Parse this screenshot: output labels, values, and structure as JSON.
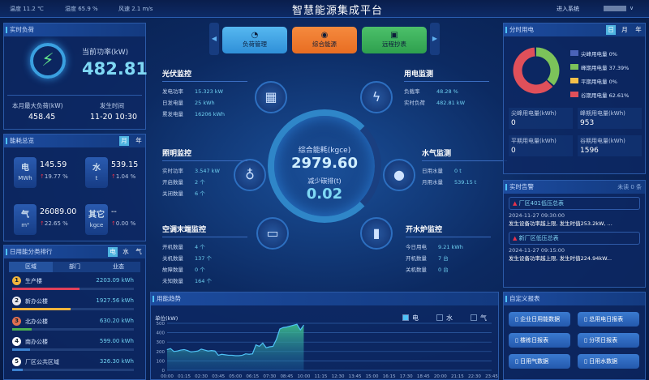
{
  "header": {
    "temperature": "温度 11.2 ℃",
    "humidity": "湿度 65.9 %",
    "wind": "风速 2.1 m/s",
    "title": "智慧能源集成平台",
    "enter": "进入系统",
    "user_caret": "∨"
  },
  "realtime_load": {
    "title": "实时负荷",
    "power_label": "当前功率(kW)",
    "power": "482.81",
    "max_label": "本月最大负荷(kW)",
    "max": "458.45",
    "time_label": "发生时间",
    "time": "11-20 10:30"
  },
  "overview": {
    "title": "能耗总览",
    "toggles": [
      "月",
      "年"
    ],
    "items": [
      {
        "name": "电",
        "unit": "MWh",
        "value": "145.59",
        "change": "19.77 %"
      },
      {
        "name": "水",
        "unit": "t",
        "value": "539.15",
        "change": "1.04 %"
      },
      {
        "name": "气",
        "unit": "m³",
        "value": "26089.00",
        "change": "22.65 %"
      },
      {
        "name": "其它",
        "unit": "kgce",
        "value": "--",
        "change": "0.00 %"
      }
    ]
  },
  "ranking": {
    "title": "日用能分类排行",
    "toggles": [
      "电",
      "水",
      "气"
    ],
    "tabs": [
      "区域",
      "部门",
      "业态"
    ],
    "items": [
      {
        "rank": "1",
        "name": "生产楼",
        "value": "2203.09 kWh",
        "pct": 38,
        "color": "#e0405a"
      },
      {
        "rank": "2",
        "name": "新办公楼",
        "value": "1927.56 kWh",
        "pct": 33,
        "color": "#f0b43c"
      },
      {
        "rank": "3",
        "name": "北办公楼",
        "value": "630.20 kWh",
        "pct": 11,
        "color": "#4caf50"
      },
      {
        "rank": "4",
        "name": "南办公楼",
        "value": "599.00 kWh",
        "pct": 10,
        "color": "#3c82d0"
      },
      {
        "rank": "5",
        "name": "厂区公共区域",
        "value": "326.30 kWh",
        "pct": 6,
        "color": "#3c82d0"
      }
    ]
  },
  "nav": {
    "buttons": [
      "负荷管理",
      "综合能源",
      "远程抄表"
    ]
  },
  "center": {
    "energy_label": "综合能耗(kgce)",
    "energy": "2979.60",
    "carbon_label": "减少碳排(t)",
    "carbon": "0.02"
  },
  "pv": {
    "title": "光伏监控",
    "rows": [
      [
        "发电功率",
        "15.323 kW"
      ],
      [
        "日发电量",
        "25 kWh"
      ],
      [
        "累发电量",
        "16206 kWh"
      ]
    ]
  },
  "power": {
    "title": "用电监测",
    "rows": [
      [
        "负载率",
        "48.28 %"
      ],
      [
        "实时负荷",
        "482.81 kW"
      ]
    ]
  },
  "lighting": {
    "title": "照明监控",
    "rows": [
      [
        "实时功率",
        "3.547 kW"
      ],
      [
        "开启数量",
        "2 个"
      ],
      [
        "关闭数量",
        "6 个"
      ]
    ]
  },
  "water": {
    "title": "水气监测",
    "rows": [
      [
        "日用水量",
        "0 t"
      ],
      [
        "月用水量",
        "539.15 t"
      ]
    ]
  },
  "ac": {
    "title": "空调末端监控",
    "rows": [
      [
        "开机数量",
        "4 个"
      ],
      [
        "关机数量",
        "137 个"
      ],
      [
        "故障数量",
        "0 个"
      ],
      [
        "未知数量",
        "164 个"
      ]
    ]
  },
  "boiler": {
    "title": "开水炉监控",
    "rows": [
      [
        "今日用电",
        "9.21 kWh"
      ],
      [
        "开机数量",
        "7 台"
      ],
      [
        "关机数量",
        "0 台"
      ]
    ]
  },
  "tou": {
    "title": "分时用电",
    "toggles": [
      "日",
      "月",
      "年"
    ],
    "legend": [
      {
        "name": "尖峰用电量",
        "pct": "0%",
        "value": 0,
        "color": "#4a63b8"
      },
      {
        "name": "峰期用电量",
        "pct": "37.39%",
        "value": 37.39,
        "color": "#7cc35a"
      },
      {
        "name": "平期用电量",
        "pct": "0%",
        "value": 0,
        "color": "#f4c04a"
      },
      {
        "name": "谷期用电量",
        "pct": "62.61%",
        "value": 62.61,
        "color": "#e0505a"
      }
    ],
    "stats": [
      [
        "尖峰用电量(kWh)",
        "0"
      ],
      [
        "峰期用电量(kWh)",
        "953"
      ],
      [
        "平期用电量(kWh)",
        "0"
      ],
      [
        "谷期用电量(kWh)",
        "1596"
      ]
    ]
  },
  "alarms": {
    "title": "实时告警",
    "unread": "未读 0 条",
    "items": [
      {
        "name": "厂区401低压总表",
        "time": "2024-11-27 09:30:00",
        "msg": "发生设备功率越上限, 发生时值253.2kW, ..."
      },
      {
        "name": "新厂区低压总表",
        "time": "2024-11-27 09:15:00",
        "msg": "发生设备功率越上限, 发生时值224.94kW..."
      }
    ]
  },
  "reports": {
    "title": "自定义报表",
    "items": [
      "企业日用能数据",
      "总用电日报表",
      "楼栋日报表",
      "分项日报表",
      "日用气数据",
      "日用水数据"
    ]
  },
  "chart_data": {
    "type": "area",
    "title": "用能趋势",
    "ylabel": "单位(kW)",
    "ylim": [
      0,
      500
    ],
    "yticks": [
      0,
      100,
      200,
      300,
      400,
      500
    ],
    "legend": [
      {
        "name": "电",
        "active": true
      },
      {
        "name": "水",
        "active": false
      },
      {
        "name": "气",
        "active": false
      }
    ],
    "xticks": [
      "00:00",
      "01:15",
      "02:30",
      "03:45",
      "05:00",
      "06:15",
      "07:30",
      "08:45",
      "10:00",
      "11:15",
      "12:30",
      "13:45",
      "15:00",
      "16:15",
      "17:30",
      "18:45",
      "20:00",
      "21:15",
      "22:30",
      "23:45"
    ],
    "x_interval_minutes": 15,
    "series": [
      {
        "name": "电",
        "values": [
          220,
          230,
          200,
          205,
          215,
          220,
          210,
          195,
          200,
          205,
          225,
          215,
          205,
          210,
          205,
          160,
          170,
          165,
          160,
          160,
          155,
          155,
          160,
          175,
          170,
          175,
          270,
          255,
          290,
          240,
          250,
          255,
          330,
          440,
          455,
          460,
          470,
          480,
          490,
          430,
          480
        ]
      }
    ],
    "grid": true,
    "color": "#4fc3f7"
  }
}
